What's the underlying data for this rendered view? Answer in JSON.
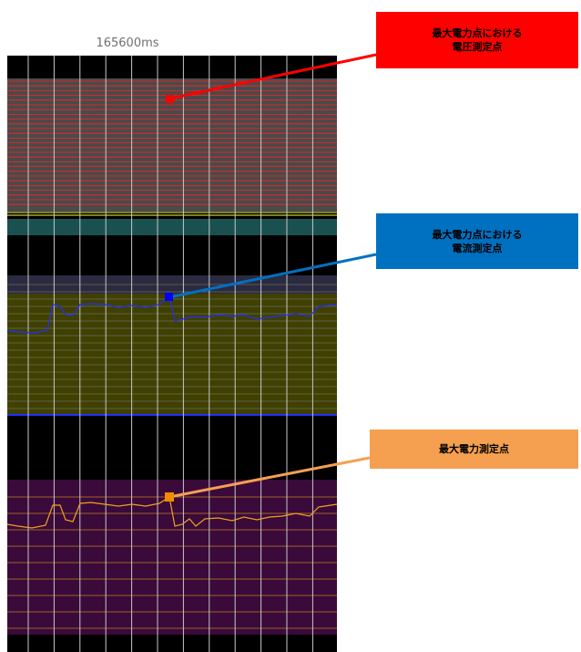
{
  "timeline": {
    "timestamp": "165600ms"
  },
  "callouts": {
    "voltage": {
      "line1": "最大電力点における",
      "line2": "電圧測定点",
      "color": "#ff0000"
    },
    "current": {
      "line1": "最大電力点における",
      "line2": "電流測定点",
      "color": "#0070c0"
    },
    "power": {
      "line1": "最大電力測定点",
      "color": "#f4a050"
    }
  },
  "colors": {
    "background": "#000000",
    "voltage_band": "#4a4a4a",
    "voltage_gridline": "#ff2020",
    "voltage_marker": "#ff0000",
    "teal_band": "#1a5050",
    "current_band": "#404000",
    "current_gridline": "#6a6a60",
    "current_trace": "#2030ff",
    "current_marker": "#0000ff",
    "power_band": "#3a0a3a",
    "power_gridline": "#c08020",
    "power_trace": "#f0a020",
    "power_marker": "#f08c00",
    "vertical_gridline": "#c8c8c8"
  }
}
